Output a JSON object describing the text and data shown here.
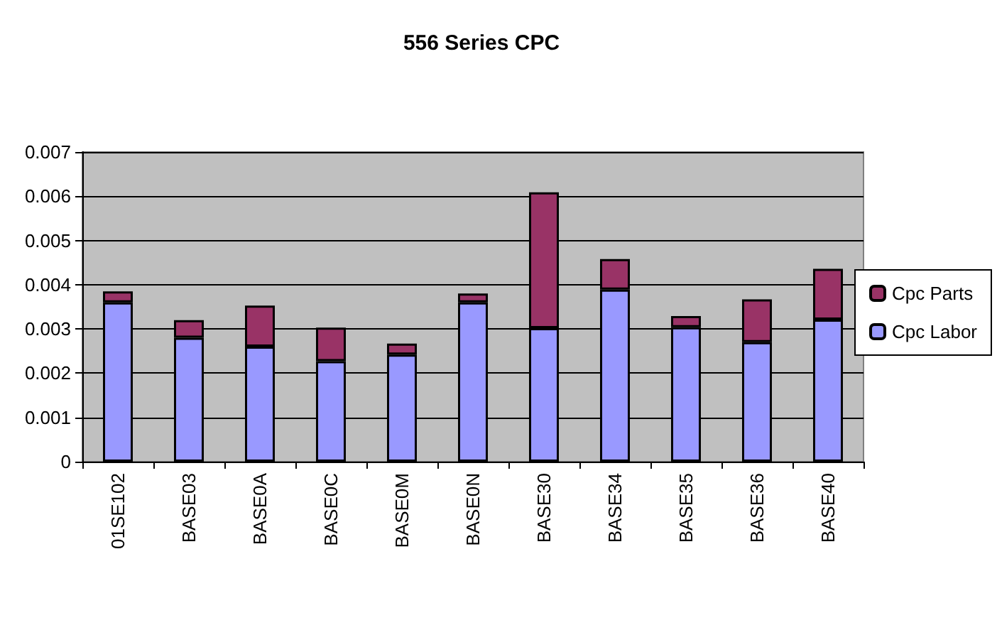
{
  "chart_data": {
    "type": "bar",
    "title": "556 Series CPC",
    "stacked": true,
    "categories": [
      "01SE102",
      "BASE03",
      "BASE0A",
      "BASE0C",
      "BASE0M",
      "BASE0N",
      "BASE30",
      "BASE34",
      "BASE35",
      "BASE36",
      "BASE40"
    ],
    "series": [
      {
        "name": "Cpc Labor",
        "color": "#9999ff",
        "values": [
          0.0036,
          0.0028,
          0.0026,
          0.00227,
          0.00242,
          0.0036,
          0.00302,
          0.00389,
          0.00304,
          0.0027,
          0.00321
        ]
      },
      {
        "name": "Cpc Parts",
        "color": "#993366",
        "values": [
          0.00025,
          0.0004,
          0.00093,
          0.00076,
          0.00025,
          0.0002,
          0.00307,
          0.00069,
          0.00025,
          0.00097,
          0.00115
        ]
      }
    ],
    "ylim": [
      0,
      0.007
    ],
    "yticks": [
      0,
      0.001,
      0.002,
      0.003,
      0.004,
      0.005,
      0.006,
      0.007
    ],
    "grid": "y",
    "legend": "right"
  }
}
